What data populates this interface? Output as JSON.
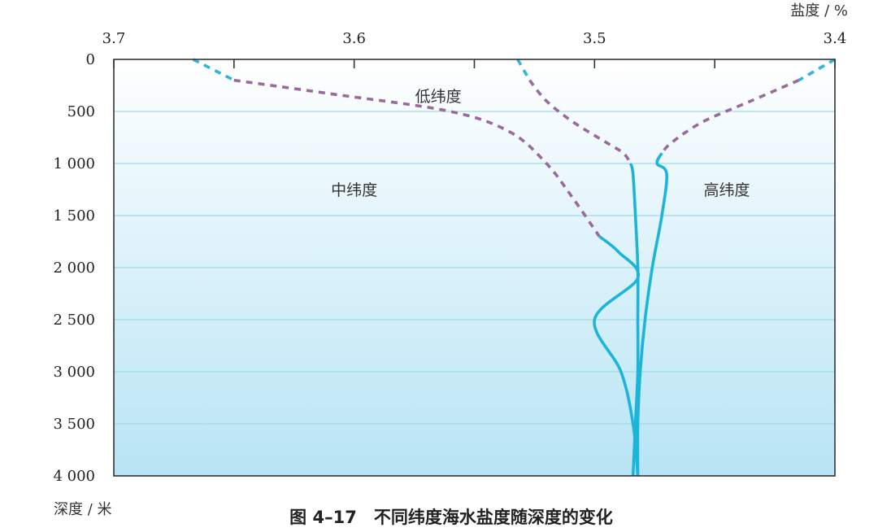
{
  "colors": {
    "solid_line": "#1cb5d9",
    "dashed_blue": "#33b4dc",
    "dashed_purple": "#9b6a9d",
    "grid": "#9fdbe8",
    "background_top": "#ffffff",
    "background_bottom": "#b7e4f5",
    "axis": "#333333"
  },
  "chart_data": {
    "type": "line",
    "title": "",
    "xlabel": "盐度 / %",
    "ylabel": "深度 / 米",
    "xlim": [
      3.7,
      3.4
    ],
    "ylim": [
      0,
      4000
    ],
    "x_reversed": true,
    "y_inverted": true,
    "x_ticks": [
      3.7,
      3.6,
      3.5,
      3.4
    ],
    "x_tick_labels": [
      "3.7",
      "3.6",
      "3.5",
      "3.4"
    ],
    "x_minor_ticks": [
      3.65,
      3.55,
      3.45
    ],
    "y_ticks": [
      0,
      500,
      1000,
      1500,
      2000,
      2500,
      3000,
      3500,
      4000
    ],
    "y_tick_labels": [
      "0",
      "500",
      "1 000",
      "1 500",
      "2 000",
      "2 500",
      "3 000",
      "3 500",
      "4 000"
    ],
    "grid": true,
    "series": [
      {
        "name": "低纬度",
        "points": [
          [
            3.532,
            0
          ],
          [
            3.527,
            200
          ],
          [
            3.52,
            400
          ],
          [
            3.509,
            600
          ],
          [
            3.495,
            800
          ],
          [
            3.488,
            900
          ],
          [
            3.485,
            1000
          ],
          [
            3.484,
            1100
          ],
          [
            3.483,
            1500
          ],
          [
            3.482,
            2000
          ],
          [
            3.482,
            2500
          ],
          [
            3.482,
            3000
          ],
          [
            3.483,
            3500
          ],
          [
            3.484,
            4000
          ]
        ],
        "segments": [
          {
            "style": "dashed-blue",
            "from": 0,
            "to": 200
          },
          {
            "style": "dashed-purple",
            "from": 200,
            "to": 1000
          },
          {
            "style": "solid",
            "from": 1000,
            "to": 4000
          }
        ]
      },
      {
        "name": "中纬度",
        "points": [
          [
            3.667,
            0
          ],
          [
            3.65,
            200
          ],
          [
            3.61,
            330
          ],
          [
            3.56,
            500
          ],
          [
            3.535,
            700
          ],
          [
            3.52,
            1000
          ],
          [
            3.51,
            1300
          ],
          [
            3.498,
            1700
          ],
          [
            3.49,
            1850
          ],
          [
            3.482,
            2100
          ],
          [
            3.5,
            2500
          ],
          [
            3.489,
            3000
          ],
          [
            3.484,
            3500
          ],
          [
            3.482,
            4000
          ]
        ],
        "segments": [
          {
            "style": "dashed-blue",
            "from": 0,
            "to": 200
          },
          {
            "style": "dashed-purple",
            "from": 200,
            "to": 1700
          },
          {
            "style": "solid",
            "from": 1700,
            "to": 4000
          }
        ]
      },
      {
        "name": "高纬度",
        "points": [
          [
            3.4,
            0
          ],
          [
            3.415,
            200
          ],
          [
            3.435,
            400
          ],
          [
            3.455,
            600
          ],
          [
            3.468,
            800
          ],
          [
            3.472,
            900
          ],
          [
            3.474,
            1000
          ],
          [
            3.47,
            1100
          ],
          [
            3.472,
            1500
          ],
          [
            3.476,
            2000
          ],
          [
            3.479,
            2500
          ],
          [
            3.481,
            3000
          ],
          [
            3.482,
            3500
          ],
          [
            3.482,
            4000
          ]
        ],
        "segments": [
          {
            "style": "dashed-blue",
            "from": 0,
            "to": 200
          },
          {
            "style": "dashed-purple",
            "from": 200,
            "to": 900
          },
          {
            "style": "solid",
            "from": 900,
            "to": 4000
          }
        ]
      }
    ],
    "annotations": [
      {
        "text": "低纬度",
        "x": 3.565,
        "y": 350
      },
      {
        "text": "中纬度",
        "x": 3.6,
        "y": 1250
      },
      {
        "text": "高纬度",
        "x": 3.445,
        "y": 1250
      }
    ]
  },
  "caption": "图 4–17　不同纬度海水盐度随深度的变化"
}
